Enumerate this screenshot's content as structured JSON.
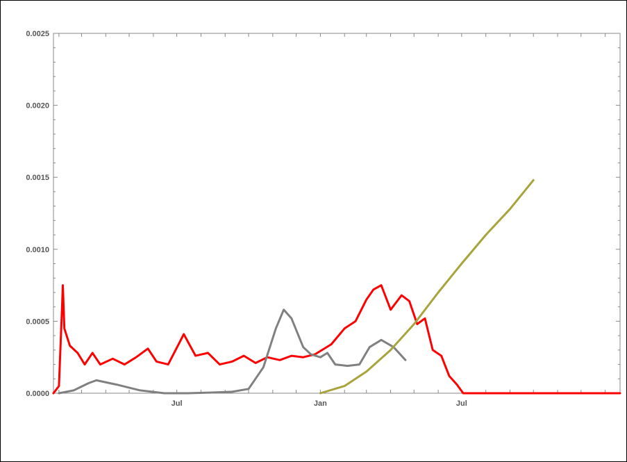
{
  "chart_data": {
    "type": "line",
    "title": "",
    "xlabel": "",
    "ylabel": "",
    "xlim": [
      "2020-01-25",
      "2022-01-20"
    ],
    "ylim": [
      0,
      0.0025
    ],
    "x_ticks": [
      {
        "label": "Jul",
        "date": "2020-07-01"
      },
      {
        "label": "Jan",
        "date": "2021-01-01"
      },
      {
        "label": "Jul",
        "date": "2021-07-01"
      }
    ],
    "y_ticks": [
      "0.0000",
      "0.0005",
      "0.0010",
      "0.0015",
      "0.0020",
      "0.0025"
    ],
    "y_tick_values": [
      0,
      0.0005,
      0.001,
      0.0015,
      0.002,
      0.0025
    ],
    "grid": false,
    "legend": "none",
    "series": [
      {
        "color": "#ff0000",
        "points": [
          [
            "2020-01-25",
            0
          ],
          [
            "2020-02-01",
            5e-05
          ],
          [
            "2020-02-05",
            0.0006
          ],
          [
            "2020-02-06",
            0.00075
          ],
          [
            "2020-02-08",
            0.00045
          ],
          [
            "2020-02-15",
            0.00033
          ],
          [
            "2020-02-25",
            0.00028
          ],
          [
            "2020-03-05",
            0.0002
          ],
          [
            "2020-03-15",
            0.00028
          ],
          [
            "2020-03-25",
            0.0002
          ],
          [
            "2020-04-10",
            0.00024
          ],
          [
            "2020-04-25",
            0.0002
          ],
          [
            "2020-05-10",
            0.00025
          ],
          [
            "2020-05-25",
            0.00031
          ],
          [
            "2020-06-05",
            0.00022
          ],
          [
            "2020-06-20",
            0.0002
          ],
          [
            "2020-07-10",
            0.00041
          ],
          [
            "2020-07-25",
            0.00026
          ],
          [
            "2020-08-10",
            0.00028
          ],
          [
            "2020-08-25",
            0.0002
          ],
          [
            "2020-09-10",
            0.00022
          ],
          [
            "2020-09-25",
            0.00026
          ],
          [
            "2020-10-10",
            0.00021
          ],
          [
            "2020-10-25",
            0.00025
          ],
          [
            "2020-11-10",
            0.00023
          ],
          [
            "2020-11-25",
            0.00026
          ],
          [
            "2020-12-10",
            0.00025
          ],
          [
            "2020-12-25",
            0.00027
          ],
          [
            "2021-01-15",
            0.00034
          ],
          [
            "2021-02-01",
            0.00045
          ],
          [
            "2021-02-15",
            0.0005
          ],
          [
            "2021-03-01",
            0.00065
          ],
          [
            "2021-03-10",
            0.00072
          ],
          [
            "2021-03-20",
            0.00075
          ],
          [
            "2021-04-01",
            0.00058
          ],
          [
            "2021-04-15",
            0.00068
          ],
          [
            "2021-04-25",
            0.00064
          ],
          [
            "2021-05-05",
            0.00048
          ],
          [
            "2021-05-15",
            0.00052
          ],
          [
            "2021-05-25",
            0.0003
          ],
          [
            "2021-06-05",
            0.00026
          ],
          [
            "2021-06-15",
            0.00012
          ],
          [
            "2021-06-25",
            6e-05
          ],
          [
            "2021-07-03",
            0
          ],
          [
            "2022-01-20",
            0
          ]
        ]
      },
      {
        "color": "#808080",
        "points": [
          [
            "2020-02-01",
            0
          ],
          [
            "2020-02-20",
            2e-05
          ],
          [
            "2020-03-10",
            7e-05
          ],
          [
            "2020-03-20",
            9e-05
          ],
          [
            "2020-04-15",
            6e-05
          ],
          [
            "2020-05-15",
            2e-05
          ],
          [
            "2020-06-15",
            0
          ],
          [
            "2020-07-15",
            0
          ],
          [
            "2020-08-15",
            5e-06
          ],
          [
            "2020-09-10",
            1e-05
          ],
          [
            "2020-10-01",
            3e-05
          ],
          [
            "2020-10-20",
            0.00018
          ],
          [
            "2020-11-05",
            0.00045
          ],
          [
            "2020-11-15",
            0.00058
          ],
          [
            "2020-11-25",
            0.00052
          ],
          [
            "2020-12-10",
            0.00032
          ],
          [
            "2020-12-20",
            0.00027
          ],
          [
            "2021-01-01",
            0.00025
          ],
          [
            "2021-01-10",
            0.00028
          ],
          [
            "2021-01-20",
            0.0002
          ],
          [
            "2021-02-05",
            0.00019
          ],
          [
            "2021-02-20",
            0.0002
          ],
          [
            "2021-03-05",
            0.00032
          ],
          [
            "2021-03-20",
            0.00037
          ],
          [
            "2021-04-05",
            0.00032
          ],
          [
            "2021-04-20",
            0.00023
          ]
        ]
      },
      {
        "color": "#a8a33a",
        "points": [
          [
            "2021-01-01",
            0
          ],
          [
            "2021-02-01",
            5e-05
          ],
          [
            "2021-03-01",
            0.00015
          ],
          [
            "2021-04-01",
            0.0003
          ],
          [
            "2021-05-01",
            0.00048
          ],
          [
            "2021-06-01",
            0.0007
          ],
          [
            "2021-07-01",
            0.0009
          ],
          [
            "2021-08-01",
            0.0011
          ],
          [
            "2021-09-01",
            0.00128
          ],
          [
            "2021-10-01",
            0.00148
          ]
        ]
      }
    ]
  }
}
